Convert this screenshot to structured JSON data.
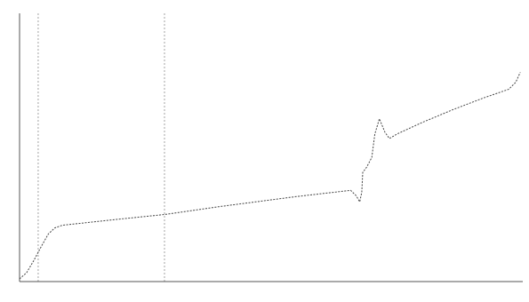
{
  "chart_data": {
    "type": "line",
    "title": "",
    "xlabel": "",
    "ylabel": "",
    "x_ticks": [],
    "y_ticks": [],
    "xlim": [
      0,
      100
    ],
    "ylim": [
      0,
      100
    ],
    "grid": false,
    "vlines": [
      {
        "x": 3.7
      },
      {
        "x": 28.8
      }
    ],
    "series": [
      {
        "points": [
          [
            0.0,
            1.0
          ],
          [
            1.4,
            3.3
          ],
          [
            2.8,
            7.7
          ],
          [
            4.3,
            13.0
          ],
          [
            5.7,
            17.7
          ],
          [
            7.0,
            20.0
          ],
          [
            8.5,
            21.0
          ],
          [
            12.0,
            21.7
          ],
          [
            20.0,
            23.3
          ],
          [
            28.8,
            25.0
          ],
          [
            40.0,
            28.0
          ],
          [
            55.0,
            31.7
          ],
          [
            65.8,
            34.0
          ],
          [
            66.9,
            32.0
          ],
          [
            67.6,
            29.7
          ],
          [
            68.0,
            33.3
          ],
          [
            68.2,
            40.7
          ],
          [
            69.0,
            42.7
          ],
          [
            70.0,
            46.3
          ],
          [
            70.6,
            55.0
          ],
          [
            71.5,
            60.7
          ],
          [
            72.6,
            55.7
          ],
          [
            73.5,
            53.3
          ],
          [
            75.0,
            55.0
          ],
          [
            80.0,
            59.3
          ],
          [
            86.0,
            64.0
          ],
          [
            92.0,
            68.3
          ],
          [
            97.2,
            71.7
          ],
          [
            98.6,
            74.3
          ],
          [
            99.5,
            78.0
          ]
        ],
        "color": "#444444"
      }
    ]
  }
}
